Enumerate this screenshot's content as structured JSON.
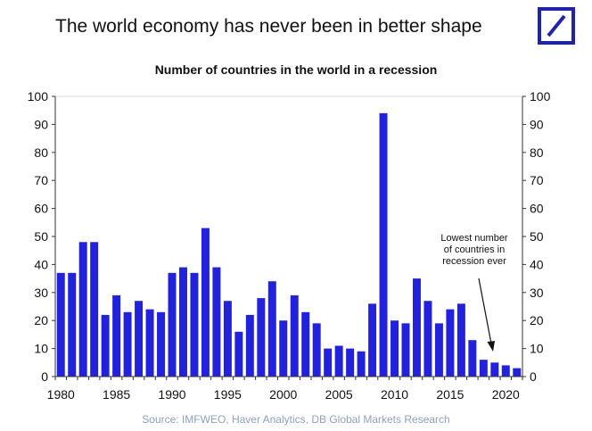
{
  "header": {
    "headline": "The world economy has never been in better shape",
    "logo_color": "#1f24a8"
  },
  "chart_data": {
    "type": "bar",
    "title": "Number of countries in the world in a recession",
    "xlabel": "",
    "ylabel": "",
    "bar_color": "#2222dd",
    "ylim": [
      0,
      100
    ],
    "yticks": [
      "0",
      "10",
      "20",
      "30",
      "40",
      "50",
      "60",
      "70",
      "80",
      "90",
      "100"
    ],
    "xticks": [
      "1980",
      "1985",
      "1990",
      "1995",
      "2000",
      "2005",
      "2010",
      "2015",
      "2020"
    ],
    "x": [
      1980,
      1981,
      1982,
      1983,
      1984,
      1985,
      1986,
      1987,
      1988,
      1989,
      1990,
      1991,
      1992,
      1993,
      1994,
      1995,
      1996,
      1997,
      1998,
      1999,
      2000,
      2001,
      2002,
      2003,
      2004,
      2005,
      2006,
      2007,
      2008,
      2009,
      2010,
      2011,
      2012,
      2013,
      2014,
      2015,
      2016,
      2017,
      2018,
      2019,
      2020,
      2021
    ],
    "values": [
      37,
      37,
      48,
      48,
      22,
      29,
      23,
      27,
      24,
      23,
      37,
      39,
      37,
      53,
      39,
      27,
      16,
      22,
      28,
      34,
      20,
      29,
      23,
      19,
      10,
      11,
      10,
      9,
      26,
      94,
      20,
      19,
      35,
      27,
      19,
      24,
      26,
      13,
      6,
      5,
      4,
      3
    ],
    "annotation": [
      "Lowest number",
      "of countries in",
      "recession ever"
    ]
  },
  "footer": {
    "source": "Source: IMFWEO, Haver Analytics, DB Global Markets Research"
  }
}
